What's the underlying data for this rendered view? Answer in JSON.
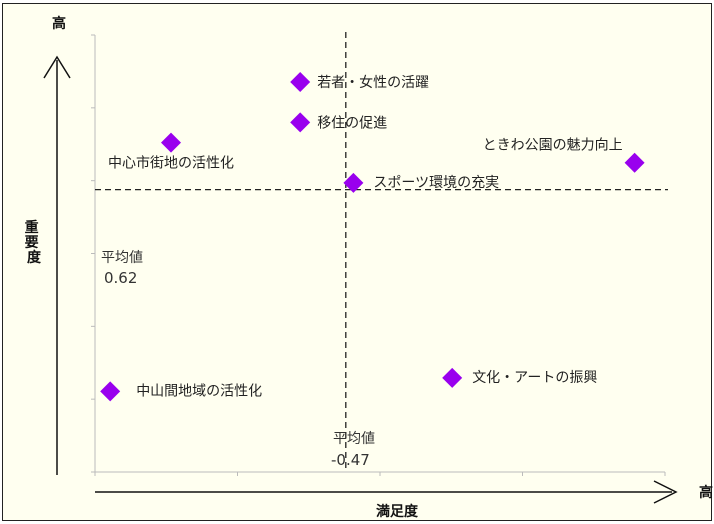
{
  "chart_data": {
    "type": "scatter",
    "title": "",
    "xlabel": "満足度",
    "ylabel": "重要度",
    "x_high_label": "高",
    "y_high_label": "高",
    "xlim": [
      -0.8,
      -0.05
    ],
    "ylim": [
      0.2,
      0.85
    ],
    "marker_color": "#9900ee",
    "reference_lines": {
      "x": {
        "label": "平均値",
        "value_text": "-0.47",
        "value": -0.47
      },
      "y": {
        "label": "平均値",
        "value_text": "0.62",
        "value": 0.62
      }
    },
    "points": [
      {
        "label": "若者・女性の活躍",
        "x": -0.53,
        "y": 0.78
      },
      {
        "label": "移住の促進",
        "x": -0.53,
        "y": 0.72
      },
      {
        "label": "中心市街地の活性化",
        "x": -0.7,
        "y": 0.69
      },
      {
        "label": "ときわ公園の魅力向上",
        "x": -0.09,
        "y": 0.66
      },
      {
        "label": "スポーツ環境の充実",
        "x": -0.46,
        "y": 0.63
      },
      {
        "label": "文化・アートの振興",
        "x": -0.33,
        "y": 0.34
      },
      {
        "label": "中山間地域の活性化",
        "x": -0.78,
        "y": 0.32
      }
    ]
  }
}
